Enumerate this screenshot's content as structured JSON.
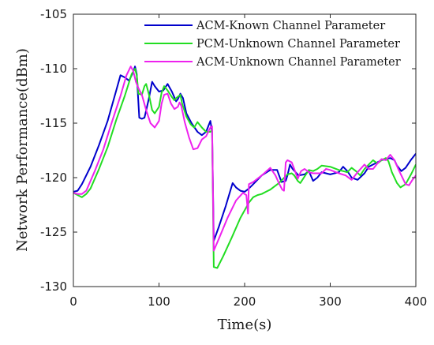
{
  "chart_data": {
    "type": "line",
    "xlabel": "Time(s)",
    "ylabel": "Network Performance(dBm)",
    "xlim": [
      0,
      400
    ],
    "ylim": [
      -130,
      -105
    ],
    "x_ticks": [
      0,
      100,
      200,
      300,
      400
    ],
    "y_ticks": [
      -105,
      -110,
      -115,
      -120,
      -125,
      -130
    ],
    "grid": false,
    "legend_position": "top-right",
    "series": [
      {
        "name": "ACM-Known Channel Parameter",
        "color": "#0000cc",
        "points": [
          [
            0,
            -121.3
          ],
          [
            5,
            -121.2
          ],
          [
            10,
            -120.6
          ],
          [
            20,
            -119
          ],
          [
            30,
            -117
          ],
          [
            40,
            -114.8
          ],
          [
            50,
            -112
          ],
          [
            55,
            -110.6
          ],
          [
            60,
            -110.8
          ],
          [
            65,
            -111.1
          ],
          [
            70,
            -110.3
          ],
          [
            72,
            -109.8
          ],
          [
            74,
            -110.5
          ],
          [
            77,
            -114.5
          ],
          [
            80,
            -114.6
          ],
          [
            83,
            -114.5
          ],
          [
            88,
            -112.8
          ],
          [
            92,
            -111.2
          ],
          [
            95,
            -111.6
          ],
          [
            100,
            -112.1
          ],
          [
            105,
            -112
          ],
          [
            110,
            -111.4
          ],
          [
            115,
            -112.1
          ],
          [
            120,
            -113
          ],
          [
            122,
            -112.8
          ],
          [
            125,
            -112.3
          ],
          [
            128,
            -112.7
          ],
          [
            132,
            -114.1
          ],
          [
            138,
            -115
          ],
          [
            145,
            -115.8
          ],
          [
            150,
            -116.1
          ],
          [
            155,
            -115.8
          ],
          [
            158,
            -115.2
          ],
          [
            160,
            -114.8
          ],
          [
            162,
            -115.8
          ],
          [
            164,
            -125.8
          ],
          [
            170,
            -124.5
          ],
          [
            178,
            -122.6
          ],
          [
            186,
            -120.5
          ],
          [
            190,
            -120.9
          ],
          [
            195,
            -121.2
          ],
          [
            200,
            -121.3
          ],
          [
            205,
            -121
          ],
          [
            210,
            -120.6
          ],
          [
            220,
            -119.8
          ],
          [
            230,
            -119.3
          ],
          [
            238,
            -119.3
          ],
          [
            243,
            -120.4
          ],
          [
            248,
            -120.3
          ],
          [
            250,
            -119.8
          ],
          [
            253,
            -118.8
          ],
          [
            256,
            -119.2
          ],
          [
            263,
            -119.8
          ],
          [
            270,
            -119.7
          ],
          [
            275,
            -119.4
          ],
          [
            280,
            -120.3
          ],
          [
            285,
            -120
          ],
          [
            290,
            -119.5
          ],
          [
            300,
            -119.7
          ],
          [
            310,
            -119.5
          ],
          [
            315,
            -119
          ],
          [
            320,
            -119.4
          ],
          [
            325,
            -120
          ],
          [
            332,
            -120.2
          ],
          [
            340,
            -119.6
          ],
          [
            345,
            -119
          ],
          [
            350,
            -118.8
          ],
          [
            360,
            -118.4
          ],
          [
            370,
            -118.2
          ],
          [
            375,
            -118.4
          ],
          [
            378,
            -118.9
          ],
          [
            383,
            -119.4
          ],
          [
            388,
            -119.1
          ],
          [
            394,
            -118.4
          ],
          [
            400,
            -117.8
          ]
        ]
      },
      {
        "name": "PCM-Unknown Channel Parameter",
        "color": "#22dd22",
        "points": [
          [
            0,
            -121.4
          ],
          [
            5,
            -121.6
          ],
          [
            10,
            -121.8
          ],
          [
            15,
            -121.5
          ],
          [
            20,
            -121
          ],
          [
            30,
            -119.2
          ],
          [
            40,
            -117.2
          ],
          [
            50,
            -114.7
          ],
          [
            60,
            -112.5
          ],
          [
            68,
            -110.5
          ],
          [
            72,
            -110
          ],
          [
            74,
            -110.6
          ],
          [
            76,
            -112.3
          ],
          [
            80,
            -112.4
          ],
          [
            83,
            -111.6
          ],
          [
            85,
            -111.4
          ],
          [
            88,
            -112.3
          ],
          [
            92,
            -113.8
          ],
          [
            95,
            -114.1
          ],
          [
            100,
            -113.5
          ],
          [
            103,
            -112.2
          ],
          [
            106,
            -111.6
          ],
          [
            110,
            -112
          ],
          [
            115,
            -112.6
          ],
          [
            118,
            -112.9
          ],
          [
            120,
            -112.7
          ],
          [
            125,
            -112.4
          ],
          [
            127,
            -113.2
          ],
          [
            132,
            -114.4
          ],
          [
            137,
            -115.1
          ],
          [
            141,
            -115.4
          ],
          [
            145,
            -114.9
          ],
          [
            150,
            -115.4
          ],
          [
            155,
            -115.8
          ],
          [
            160,
            -115.8
          ],
          [
            162,
            -115.6
          ],
          [
            164,
            -128.2
          ],
          [
            168,
            -128.3
          ],
          [
            175,
            -127.2
          ],
          [
            185,
            -125.5
          ],
          [
            195,
            -123.7
          ],
          [
            205,
            -122.3
          ],
          [
            210,
            -121.8
          ],
          [
            215,
            -121.6
          ],
          [
            220,
            -121.5
          ],
          [
            225,
            -121.3
          ],
          [
            230,
            -121.1
          ],
          [
            240,
            -120.5
          ],
          [
            250,
            -119.7
          ],
          [
            255,
            -119.6
          ],
          [
            258,
            -119.8
          ],
          [
            262,
            -120.3
          ],
          [
            265,
            -120.5
          ],
          [
            270,
            -119.9
          ],
          [
            275,
            -119.3
          ],
          [
            280,
            -119.4
          ],
          [
            285,
            -119.2
          ],
          [
            290,
            -118.9
          ],
          [
            300,
            -119
          ],
          [
            310,
            -119.3
          ],
          [
            320,
            -119.5
          ],
          [
            325,
            -119.1
          ],
          [
            330,
            -119.4
          ],
          [
            335,
            -119.8
          ],
          [
            340,
            -119.2
          ],
          [
            345,
            -118.8
          ],
          [
            350,
            -118.4
          ],
          [
            355,
            -118.7
          ],
          [
            360,
            -118.4
          ],
          [
            365,
            -118.2
          ],
          [
            368,
            -118.5
          ],
          [
            372,
            -119.5
          ],
          [
            378,
            -120.5
          ],
          [
            382,
            -120.9
          ],
          [
            388,
            -120.6
          ],
          [
            395,
            -119.6
          ],
          [
            400,
            -118.8
          ]
        ]
      },
      {
        "name": "ACM-Unknown Channel Parameter",
        "color": "#ee22ee",
        "points": [
          [
            0,
            -121.4
          ],
          [
            5,
            -121.5
          ],
          [
            10,
            -121.5
          ],
          [
            15,
            -121.2
          ],
          [
            25,
            -119.4
          ],
          [
            35,
            -117.4
          ],
          [
            45,
            -114.9
          ],
          [
            55,
            -112.5
          ],
          [
            62,
            -110.6
          ],
          [
            67,
            -109.8
          ],
          [
            70,
            -110.2
          ],
          [
            73,
            -111.2
          ],
          [
            76,
            -111.8
          ],
          [
            80,
            -112.4
          ],
          [
            85,
            -113.8
          ],
          [
            90,
            -115
          ],
          [
            95,
            -115.4
          ],
          [
            100,
            -114.8
          ],
          [
            103,
            -113.2
          ],
          [
            106,
            -112.4
          ],
          [
            110,
            -112.3
          ],
          [
            114,
            -113.2
          ],
          [
            118,
            -113.7
          ],
          [
            122,
            -113.5
          ],
          [
            124,
            -113.1
          ],
          [
            126,
            -113.4
          ],
          [
            130,
            -114.9
          ],
          [
            135,
            -116.3
          ],
          [
            140,
            -117.4
          ],
          [
            145,
            -117.3
          ],
          [
            150,
            -116.5
          ],
          [
            155,
            -116.2
          ],
          [
            160,
            -115.4
          ],
          [
            162,
            -115.3
          ],
          [
            164,
            -126.7
          ],
          [
            170,
            -125.6
          ],
          [
            180,
            -123.7
          ],
          [
            190,
            -122.1
          ],
          [
            198,
            -121.4
          ],
          [
            202,
            -121.6
          ],
          [
            204,
            -123.3
          ],
          [
            205,
            -120.6
          ],
          [
            210,
            -120.4
          ],
          [
            220,
            -119.8
          ],
          [
            230,
            -119.1
          ],
          [
            236,
            -119.8
          ],
          [
            240,
            -120.5
          ],
          [
            244,
            -121.1
          ],
          [
            246,
            -121.2
          ],
          [
            248,
            -118.6
          ],
          [
            250,
            -118.4
          ],
          [
            255,
            -118.6
          ],
          [
            258,
            -119.2
          ],
          [
            262,
            -120.1
          ],
          [
            266,
            -119.4
          ],
          [
            270,
            -119.2
          ],
          [
            275,
            -119.5
          ],
          [
            280,
            -119.6
          ],
          [
            290,
            -119.6
          ],
          [
            295,
            -119.2
          ],
          [
            300,
            -119.3
          ],
          [
            310,
            -119.6
          ],
          [
            318,
            -119.8
          ],
          [
            325,
            -120.2
          ],
          [
            332,
            -119.5
          ],
          [
            340,
            -118.8
          ],
          [
            345,
            -119.2
          ],
          [
            350,
            -119.2
          ],
          [
            355,
            -118.7
          ],
          [
            360,
            -118.3
          ],
          [
            365,
            -118.4
          ],
          [
            370,
            -117.9
          ],
          [
            375,
            -118.4
          ],
          [
            380,
            -119.3
          ],
          [
            385,
            -120.1
          ],
          [
            388,
            -120.6
          ],
          [
            392,
            -120.7
          ],
          [
            396,
            -120.2
          ],
          [
            400,
            -119.8
          ]
        ]
      }
    ]
  }
}
